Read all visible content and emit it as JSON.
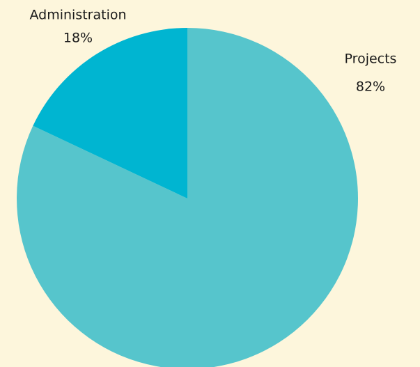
{
  "chart_data": {
    "type": "pie",
    "categories": [
      "Projects",
      "Administration"
    ],
    "values": [
      82,
      18
    ],
    "value_labels": [
      "82%",
      "18%"
    ],
    "colors": [
      "#56c5cc",
      "#00b5d1"
    ]
  }
}
